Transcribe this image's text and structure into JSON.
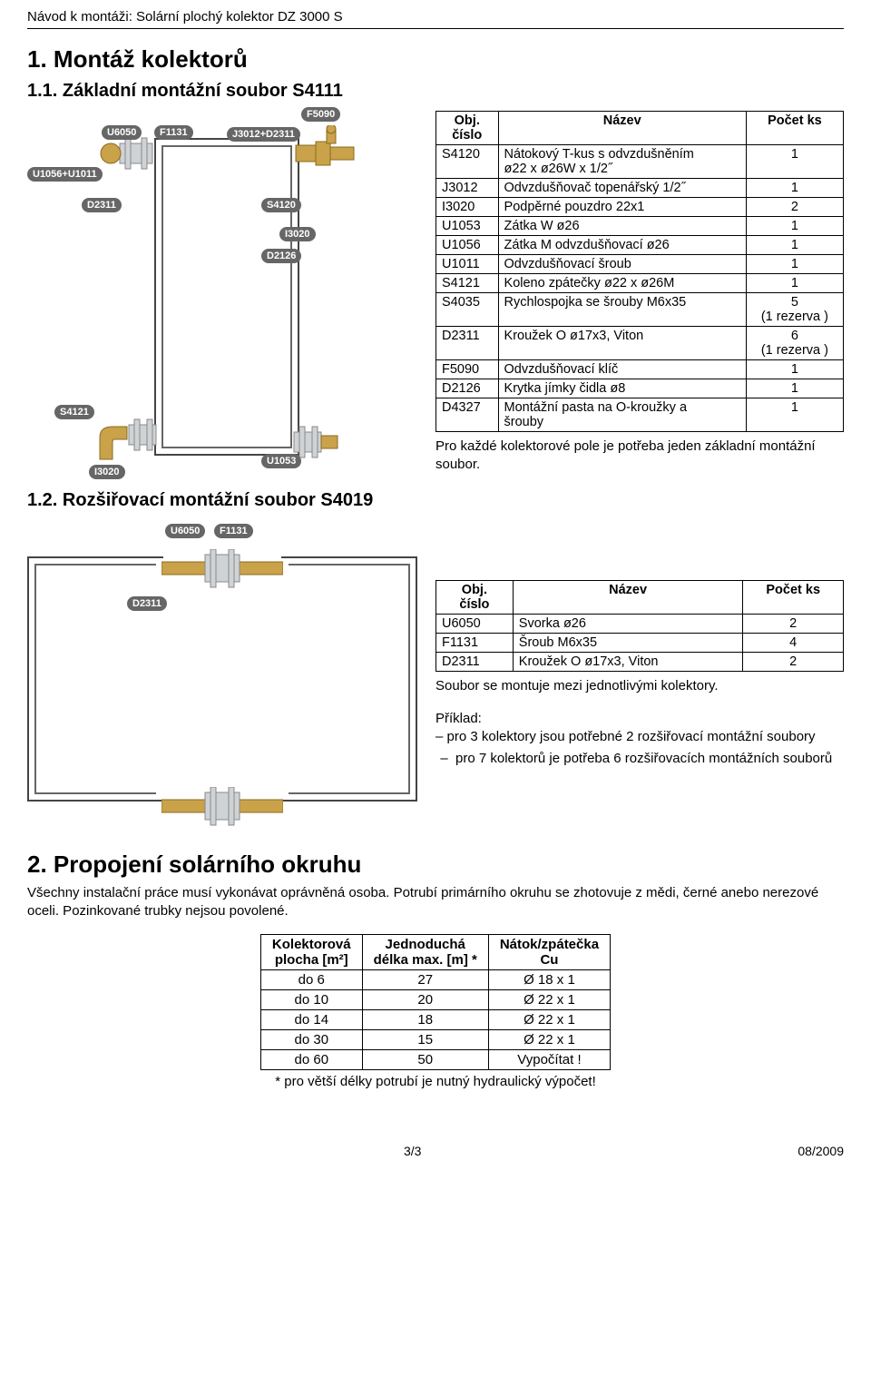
{
  "header": "Návod k montáži: Solární plochý kolektor DZ 3000 S",
  "h1": "1. Montáž kolektorů",
  "h11": "1.1. Základní montážní soubor S4111",
  "h12": "1.2. Rozšiřovací montážní soubor S4019",
  "labels1": {
    "F5090": "F5090",
    "U6050": "U6050",
    "F1131": "F1131",
    "J3012D2311": "J3012+D2311",
    "U1056U1011": "U1056+U1011",
    "D2311a": "D2311",
    "S4120": "S4120",
    "I3020a": "I3020",
    "D2126": "D2126",
    "S4121": "S4121",
    "I3020b": "I3020",
    "U1053": "U1053"
  },
  "labels2": {
    "U6050": "U6050",
    "F1131": "F1131",
    "D2311": "D2311"
  },
  "table1": {
    "head": {
      "c1": "Obj.\nčíslo",
      "c2": "Název",
      "c3": "Počet ks"
    },
    "rows": [
      {
        "c1": "S4120",
        "c2": "Nátokový T-kus s odvzdušněním\nø22 x ø26W x 1/2˝",
        "c3": "1"
      },
      {
        "c1": "J3012",
        "c2": "Odvzdušňovač topenářský 1/2˝",
        "c3": "1"
      },
      {
        "c1": "I3020",
        "c2": "Podpěrné pouzdro 22x1",
        "c3": "2"
      },
      {
        "c1": "U1053",
        "c2": "Zátka W ø26",
        "c3": "1"
      },
      {
        "c1": "U1056",
        "c2": "Zátka M odvzdušňovací ø26",
        "c3": "1"
      },
      {
        "c1": "U1011",
        "c2": "Odvzdušňovací šroub",
        "c3": "1"
      },
      {
        "c1": "S4121",
        "c2": "Koleno zpátečky ø22 x ø26M",
        "c3": "1"
      },
      {
        "c1": "S4035",
        "c2": "Rychlospojka se šrouby M6x35",
        "c3": "5\n(1 rezerva )"
      },
      {
        "c1": "D2311",
        "c2": "Kroužek O ø17x3, Viton",
        "c3": "6\n(1 rezerva )"
      },
      {
        "c1": "F5090",
        "c2": "Odvzdušňovací klíč",
        "c3": "1"
      },
      {
        "c1": "D2126",
        "c2": "Krytka jímky čidla ø8",
        "c3": "1"
      },
      {
        "c1": "D4327",
        "c2": "Montážní pasta na O-kroužky a\nšrouby",
        "c3": "1"
      }
    ],
    "note": "Pro každé kolektorové pole je potřeba jeden základní montážní soubor."
  },
  "table2": {
    "head": {
      "c1": "Obj.\nčíslo",
      "c2": "Název",
      "c3": "Počet ks"
    },
    "rows": [
      {
        "c1": "U6050",
        "c2": "Svorka ø26",
        "c3": "2"
      },
      {
        "c1": "F1131",
        "c2": "Šroub M6x35",
        "c3": "4"
      },
      {
        "c1": "D2311",
        "c2": "Kroužek O ø17x3, Viton",
        "c3": "2"
      }
    ],
    "note": "Soubor se montuje mezi jednotlivými kolektory.",
    "example_title": "Příklad:",
    "example_l1": "– pro 3 kolektory jsou potřebné 2 rozšiřovací montážní soubory",
    "example_l2": "pro 7 kolektorů je potřeba 6 rozšiřovacích montážních souborů"
  },
  "h2": "2. Propojení solárního okruhu",
  "body2": "Všechny instalační práce musí vykonávat oprávněná osoba. Potrubí primárního okruhu se zhotovuje z mědi, černé anebo nerezové oceli. Pozinkované trubky nejsou povolené.",
  "table3": {
    "head": {
      "c1": "Kolektorová\nplocha [m²]",
      "c2": "Jednoduchá\ndélka max. [m] *",
      "c3": "Nátok/zpátečka\nCu"
    },
    "rows": [
      {
        "c1": "do 6",
        "c2": "27",
        "c3": "Ø 18 x 1"
      },
      {
        "c1": "do 10",
        "c2": "20",
        "c3": "Ø 22 x 1"
      },
      {
        "c1": "do 14",
        "c2": "18",
        "c3": "Ø 22 x 1"
      },
      {
        "c1": "do 30",
        "c2": "15",
        "c3": "Ø 22 x 1"
      },
      {
        "c1": "do 60",
        "c2": "50",
        "c3": "Vypočítat !"
      }
    ],
    "note": "* pro větší délky potrubí je nutný hydraulický výpočet!"
  },
  "footer": {
    "left": "",
    "mid": "3/3",
    "right": "08/2009"
  }
}
